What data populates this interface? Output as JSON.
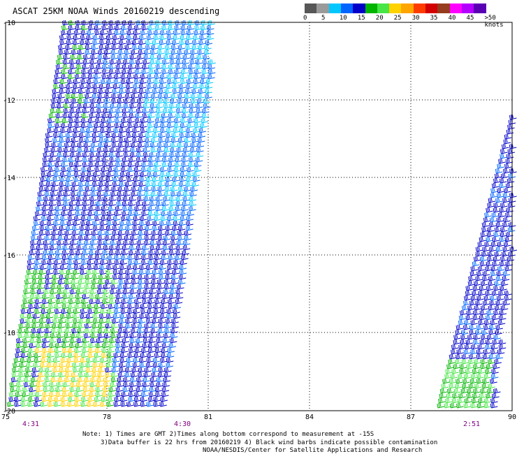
{
  "title": "ASCAT 25KM NOAA Winds 20160219 descending",
  "colorbar": {
    "colors": [
      "#575757",
      "#9a9a9a",
      "#00c8ff",
      "#0064ff",
      "#0000c8",
      "#00b400",
      "#46e646",
      "#ffd200",
      "#ffa500",
      "#ff3c00",
      "#d20000",
      "#963c1e",
      "#ff00ff",
      "#b400ff",
      "#5a00b4"
    ],
    "labels": [
      "0",
      "5",
      "10",
      "15",
      "20",
      "25",
      "30",
      "35",
      "40",
      "45",
      ">50 knots"
    ]
  },
  "lat_labels": [
    "-10",
    "-12",
    "-14",
    "-16",
    "-18",
    "-20"
  ],
  "lon_labels": [
    "75",
    "78",
    "81",
    "84",
    "87",
    "90"
  ],
  "times": [
    {
      "label": "4:31",
      "color": "#800080"
    },
    {
      "label": "4:30",
      "color": "#800080"
    },
    {
      "label": "2:51",
      "color": "#800080"
    }
  ],
  "notes": {
    "line1": "Note: 1) Times are GMT 2)Times along bottom correspond to measurement at -15S",
    "line2": "3)Data buffer is 22 hrs from 20160219 4) Black wind barbs indicate possible contamination",
    "line3": "NOAA/NESDIS/Center for Satellite Applications and Research"
  }
}
